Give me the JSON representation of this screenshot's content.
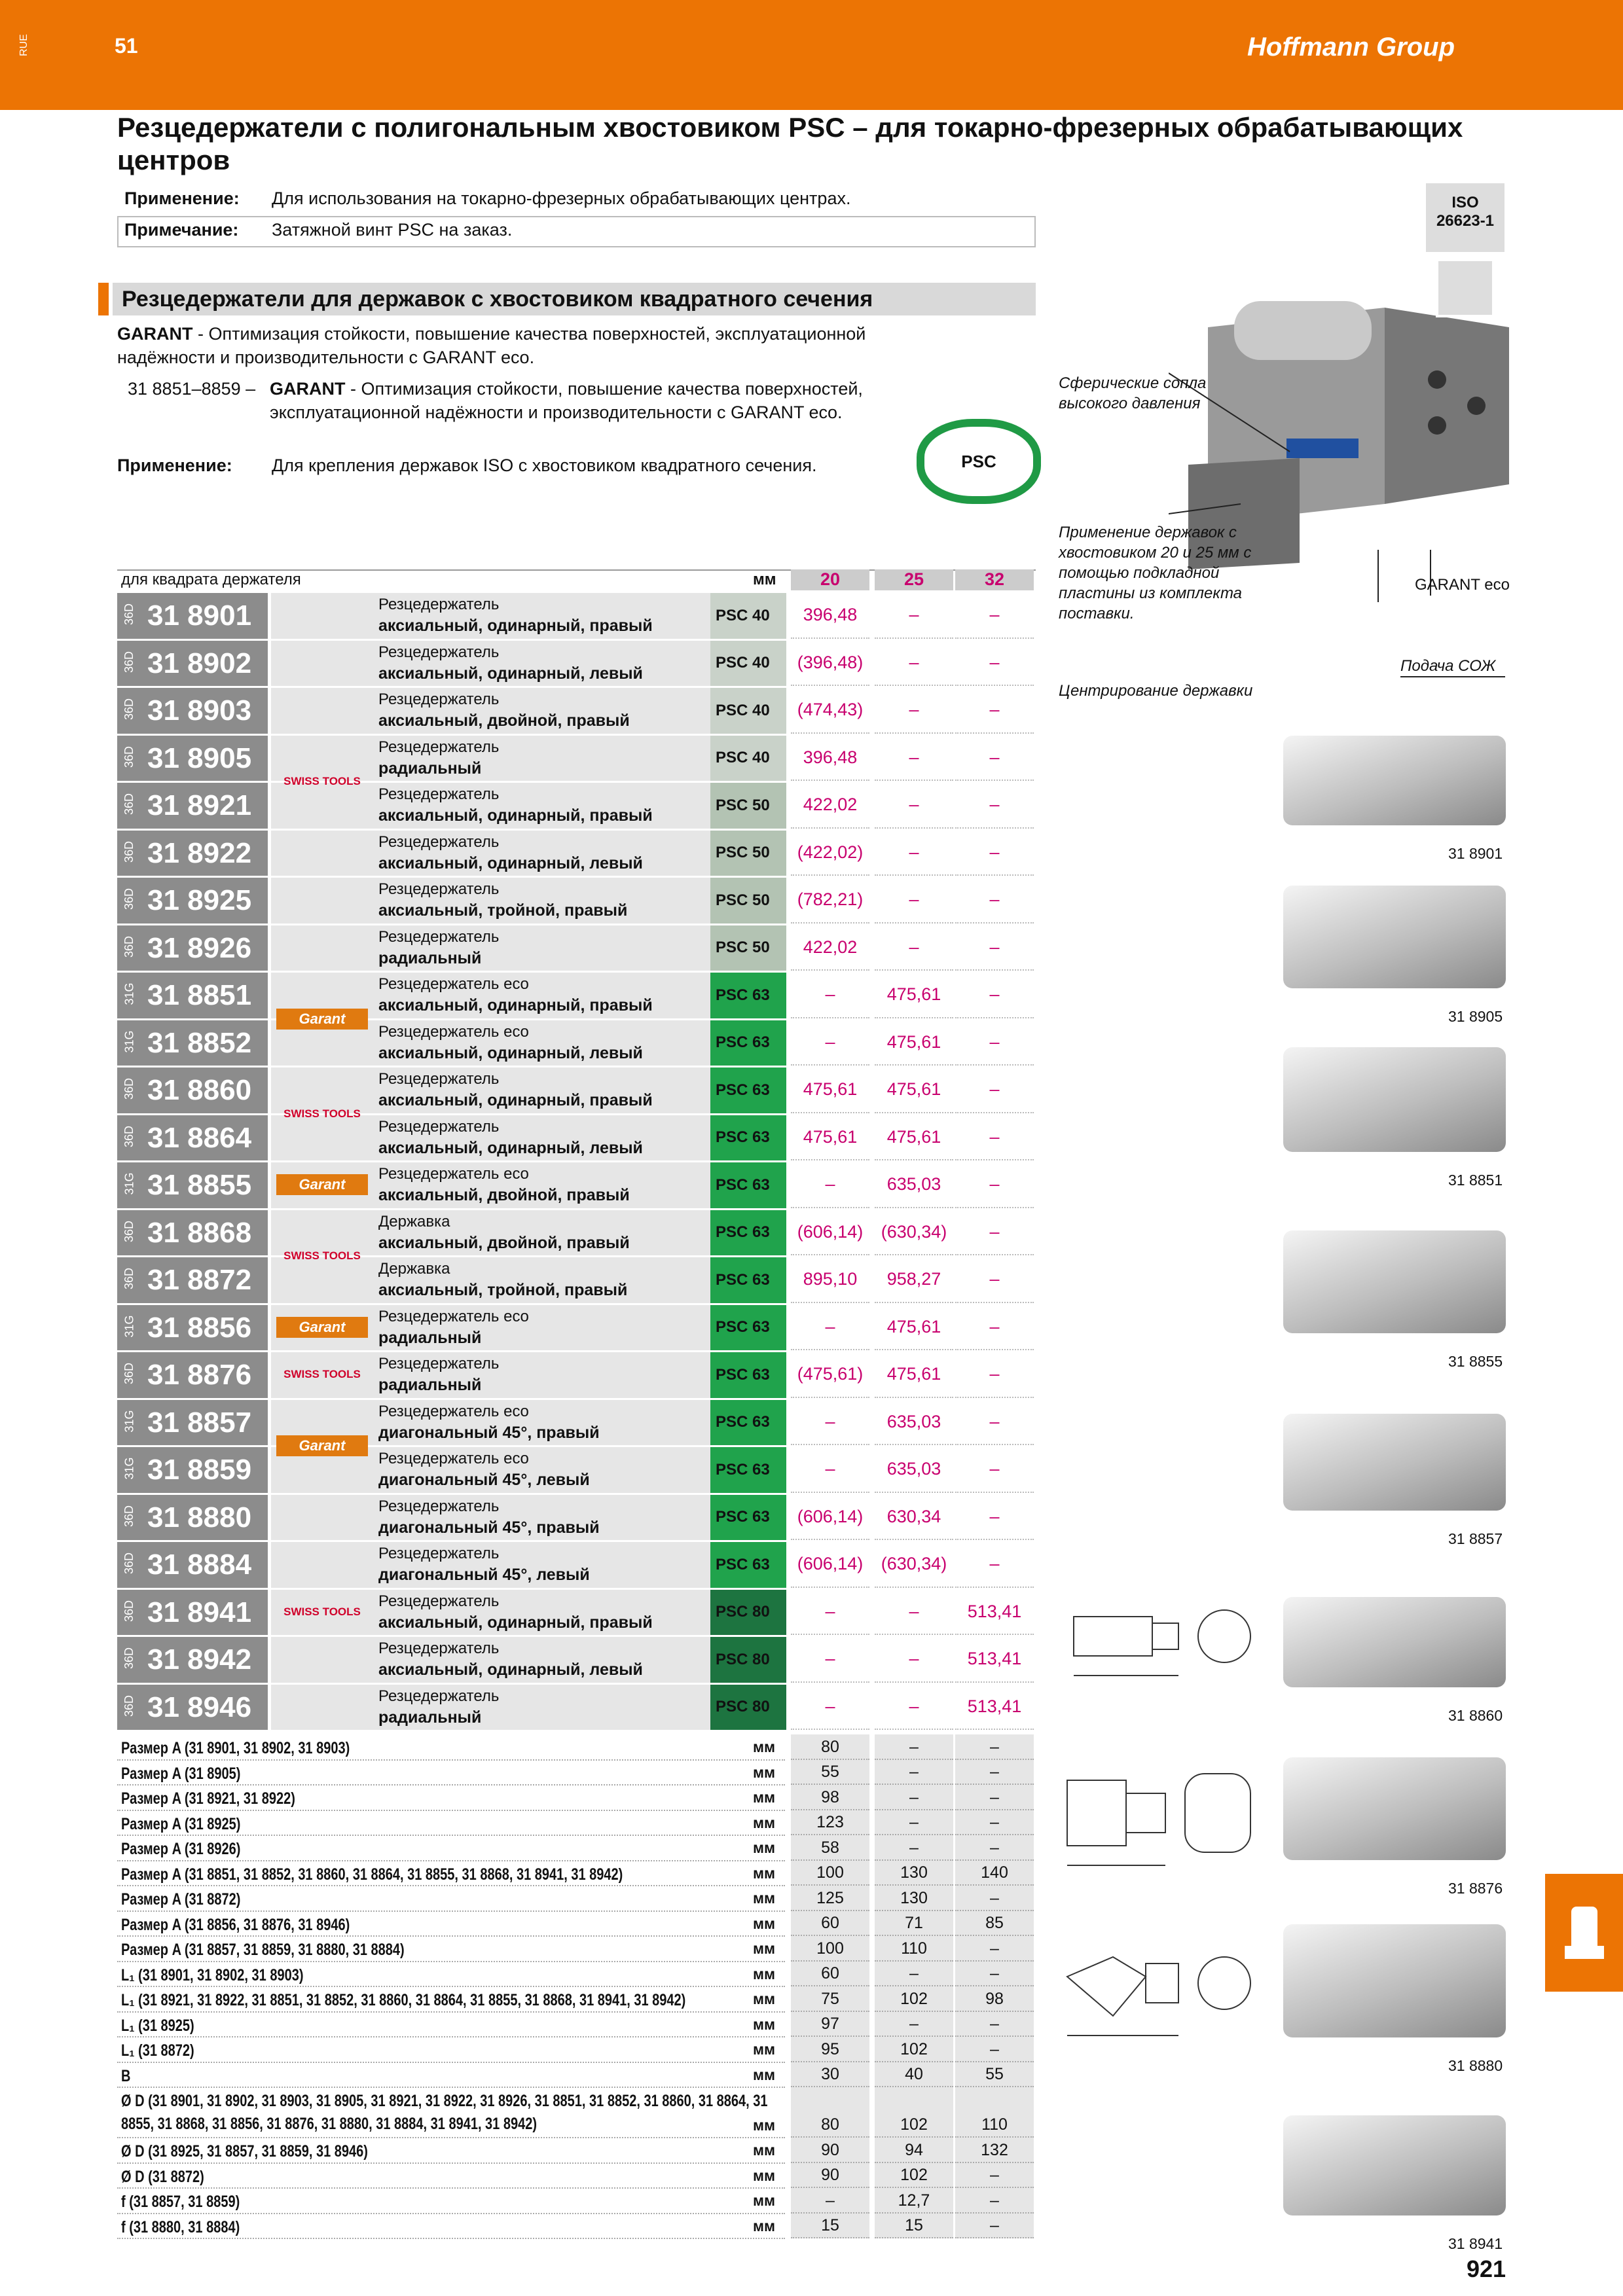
{
  "header": {
    "lang": "RUE",
    "section_no": "51",
    "brand": "Hoffmann Group"
  },
  "title": "Резцедержатели с полигональным хвостовиком PSC – для токарно-фрезерных обрабатывающих центров",
  "info": [
    {
      "label": "Применение:",
      "text": "Для использования на токарно-фрезерных обрабатывающих центрах."
    },
    {
      "label": "Примечание:",
      "text": "Затяжной винт PSC на заказ."
    }
  ],
  "iso": [
    "ISO",
    "26623-1"
  ],
  "section": {
    "title": "Резцедержатели для державок с хвостовиком квадратного сечения",
    "desc": [
      {
        "prefix": "",
        "brand": "GARANT",
        "text": "- Оптимизация стойкости, повышение качества поверхностей, эксплуатационной надёжности и производительности с GARANT eco."
      },
      {
        "prefix": "31 8851–8859 –",
        "brand": "GARANT",
        "text": "- Оптимизация стойкости, повышение качества поверхностей, эксплуатационной надёжности и производительности с GARANT eco."
      }
    ],
    "application": {
      "label": "Применение:",
      "text": "Для крепления державок ISO с хвостовиком квадратного сечения."
    },
    "badge": "PSC"
  },
  "callouts": [
    "Сферические сопла высокого давления",
    "Применение державок с хвостовиком 20 и 25 мм с помощью подкладной пластины из комплекта поставки.",
    "GARANT eco",
    "Подача СОЖ",
    "Центрирование державки"
  ],
  "table": {
    "header": {
      "label": "для квадрата держателя",
      "unit": "мм",
      "sizes": [
        "20",
        "25",
        "32"
      ]
    },
    "rows": [
      {
        "prefix": "36D",
        "code": "31 8901",
        "brand": "SWISS TOOLS",
        "name": "Резцедержатель",
        "variant": "аксиальный, одинарный, правый",
        "psc": "PSC 40",
        "psc_color": "#c9d2c9",
        "prices": [
          "396,48",
          "–",
          "–"
        ]
      },
      {
        "prefix": "36D",
        "code": "31 8902",
        "brand": "SWISS TOOLS",
        "name": "Резцедержатель",
        "variant": "аксиальный, одинарный, левый",
        "psc": "PSC 40",
        "psc_color": "#c9d2c9",
        "prices": [
          "(396,48)",
          "–",
          "–"
        ]
      },
      {
        "prefix": "36D",
        "code": "31 8903",
        "brand": "SWISS TOOLS",
        "name": "Резцедержатель",
        "variant": "аксиальный, двойной, правый",
        "psc": "PSC 40",
        "psc_color": "#c9d2c9",
        "prices": [
          "(474,43)",
          "–",
          "–"
        ]
      },
      {
        "prefix": "36D",
        "code": "31 8905",
        "brand": "SWISS TOOLS",
        "name": "Резцедержатель",
        "variant": "радиальный",
        "psc": "PSC 40",
        "psc_color": "#c9d2c9",
        "prices": [
          "396,48",
          "–",
          "–"
        ]
      },
      {
        "prefix": "36D",
        "code": "31 8921",
        "brand": "SWISS TOOLS",
        "name": "Резцедержатель",
        "variant": "аксиальный, одинарный, правый",
        "psc": "PSC 50",
        "psc_color": "#b3c3b3",
        "prices": [
          "422,02",
          "–",
          "–"
        ]
      },
      {
        "prefix": "36D",
        "code": "31 8922",
        "brand": "SWISS TOOLS",
        "name": "Резцедержатель",
        "variant": "аксиальный, одинарный, левый",
        "psc": "PSC 50",
        "psc_color": "#b3c3b3",
        "prices": [
          "(422,02)",
          "–",
          "–"
        ]
      },
      {
        "prefix": "36D",
        "code": "31 8925",
        "brand": "SWISS TOOLS",
        "name": "Резцедержатель",
        "variant": "аксиальный, тройной, правый",
        "psc": "PSC 50",
        "psc_color": "#b3c3b3",
        "prices": [
          "(782,21)",
          "–",
          "–"
        ]
      },
      {
        "prefix": "36D",
        "code": "31 8926",
        "brand": "SWISS TOOLS",
        "name": "Резцедержатель",
        "variant": "радиальный",
        "psc": "PSC 50",
        "psc_color": "#b3c3b3",
        "prices": [
          "422,02",
          "–",
          "–"
        ]
      },
      {
        "prefix": "31G",
        "code": "31 8851",
        "brand": "Garant",
        "name": "Резцедержатель eco",
        "variant": "аксиальный, одинарный, правый",
        "psc": "PSC 63",
        "psc_color": "#20a34c",
        "prices": [
          "–",
          "475,61",
          "–"
        ]
      },
      {
        "prefix": "31G",
        "code": "31 8852",
        "brand": "Garant",
        "name": "Резцедержатель eco",
        "variant": "аксиальный, одинарный, левый",
        "psc": "PSC 63",
        "psc_color": "#20a34c",
        "prices": [
          "–",
          "475,61",
          "–"
        ]
      },
      {
        "prefix": "36D",
        "code": "31 8860",
        "brand": "SWISS TOOLS",
        "name": "Резцедержатель",
        "variant": "аксиальный, одинарный, правый",
        "psc": "PSC 63",
        "psc_color": "#20a34c",
        "prices": [
          "475,61",
          "475,61",
          "–"
        ]
      },
      {
        "prefix": "36D",
        "code": "31 8864",
        "brand": "SWISS TOOLS",
        "name": "Резцедержатель",
        "variant": "аксиальный, одинарный, левый",
        "psc": "PSC 63",
        "psc_color": "#20a34c",
        "prices": [
          "475,61",
          "475,61",
          "–"
        ]
      },
      {
        "prefix": "31G",
        "code": "31 8855",
        "brand": "Garant",
        "name": "Резцедержатель eco",
        "variant": "аксиальный, двойной, правый",
        "psc": "PSC 63",
        "psc_color": "#20a34c",
        "prices": [
          "–",
          "635,03",
          "–"
        ]
      },
      {
        "prefix": "36D",
        "code": "31 8868",
        "brand": "SWISS TOOLS",
        "name": "Державка",
        "variant": "аксиальный, двойной, правый",
        "psc": "PSC 63",
        "psc_color": "#20a34c",
        "prices": [
          "(606,14)",
          "(630,34)",
          "–"
        ]
      },
      {
        "prefix": "36D",
        "code": "31 8872",
        "brand": "SWISS TOOLS",
        "name": "Державка",
        "variant": "аксиальный, тройной, правый",
        "psc": "PSC 63",
        "psc_color": "#20a34c",
        "prices": [
          "895,10",
          "958,27",
          "–"
        ]
      },
      {
        "prefix": "31G",
        "code": "31 8856",
        "brand": "Garant",
        "name": "Резцедержатель eco",
        "variant": "радиальный",
        "psc": "PSC 63",
        "psc_color": "#20a34c",
        "prices": [
          "–",
          "475,61",
          "–"
        ]
      },
      {
        "prefix": "36D",
        "code": "31 8876",
        "brand": "SWISS TOOLS",
        "name": "Резцедержатель",
        "variant": "радиальный",
        "psc": "PSC 63",
        "psc_color": "#20a34c",
        "prices": [
          "(475,61)",
          "475,61",
          "–"
        ]
      },
      {
        "prefix": "31G",
        "code": "31 8857",
        "brand": "Garant",
        "name": "Резцедержатель eco",
        "variant": "диагональный 45°, правый",
        "psc": "PSC 63",
        "psc_color": "#20a34c",
        "prices": [
          "–",
          "635,03",
          "–"
        ]
      },
      {
        "prefix": "31G",
        "code": "31 8859",
        "brand": "Garant",
        "name": "Резцедержатель eco",
        "variant": "диагональный 45°, левый",
        "psc": "PSC 63",
        "psc_color": "#20a34c",
        "prices": [
          "–",
          "635,03",
          "–"
        ]
      },
      {
        "prefix": "36D",
        "code": "31 8880",
        "brand": "SWISS TOOLS",
        "name": "Резцедержатель",
        "variant": "диагональный 45°, правый",
        "psc": "PSC 63",
        "psc_color": "#20a34c",
        "prices": [
          "(606,14)",
          "630,34",
          "–"
        ]
      },
      {
        "prefix": "36D",
        "code": "31 8884",
        "brand": "SWISS TOOLS",
        "name": "Резцедержатель",
        "variant": "диагональный 45°, левый",
        "psc": "PSC 63",
        "psc_color": "#20a34c",
        "prices": [
          "(606,14)",
          "(630,34)",
          "–"
        ]
      },
      {
        "prefix": "36D",
        "code": "31 8941",
        "brand": "SWISS TOOLS",
        "name": "Резцедержатель",
        "variant": "аксиальный, одинарный, правый",
        "psc": "PSC 80",
        "psc_color": "#1d7440",
        "prices": [
          "–",
          "–",
          "513,41"
        ]
      },
      {
        "prefix": "36D",
        "code": "31 8942",
        "brand": "SWISS TOOLS",
        "name": "Резцедержатель",
        "variant": "аксиальный, одинарный, левый",
        "psc": "PSC 80",
        "psc_color": "#1d7440",
        "prices": [
          "–",
          "–",
          "513,41"
        ]
      },
      {
        "prefix": "36D",
        "code": "31 8946",
        "brand": "SWISS TOOLS",
        "name": "Резцедержатель",
        "variant": "радиальный",
        "psc": "PSC 80",
        "psc_color": "#1d7440",
        "prices": [
          "–",
          "–",
          "513,41"
        ]
      }
    ],
    "dims": [
      {
        "label": "Размер A (31 8901, 31 8902, 31 8903)",
        "unit": "мм",
        "values": [
          "80",
          "–",
          "–"
        ]
      },
      {
        "label": "Размер A (31 8905)",
        "unit": "мм",
        "values": [
          "55",
          "–",
          "–"
        ]
      },
      {
        "label": "Размер A (31 8921, 31 8922)",
        "unit": "мм",
        "values": [
          "98",
          "–",
          "–"
        ]
      },
      {
        "label": "Размер A (31 8925)",
        "unit": "мм",
        "values": [
          "123",
          "–",
          "–"
        ]
      },
      {
        "label": "Размер A (31 8926)",
        "unit": "мм",
        "values": [
          "58",
          "–",
          "–"
        ]
      },
      {
        "label": "Размер A (31 8851, 31 8852, 31 8860, 31 8864, 31 8855, 31 8868, 31 8941, 31 8942)",
        "unit": "мм",
        "values": [
          "100",
          "130",
          "140"
        ]
      },
      {
        "label": "Размер A (31 8872)",
        "unit": "мм",
        "values": [
          "125",
          "130",
          "–"
        ]
      },
      {
        "label": "Размер A (31 8856, 31 8876, 31 8946)",
        "unit": "мм",
        "values": [
          "60",
          "71",
          "85"
        ]
      },
      {
        "label": "Размер A (31 8857, 31 8859, 31 8880, 31 8884)",
        "unit": "мм",
        "values": [
          "100",
          "110",
          "–"
        ]
      },
      {
        "label": "L₁ (31 8901, 31 8902, 31 8903)",
        "unit": "мм",
        "values": [
          "60",
          "–",
          "–"
        ]
      },
      {
        "label": "L₁ (31 8921, 31 8922, 31 8851, 31 8852, 31 8860, 31 8864, 31 8855, 31 8868, 31 8941, 31 8942)",
        "unit": "мм",
        "values": [
          "75",
          "102",
          "98"
        ]
      },
      {
        "label": "L₁ (31 8925)",
        "unit": "мм",
        "values": [
          "97",
          "–",
          "–"
        ]
      },
      {
        "label": "L₁ (31 8872)",
        "unit": "мм",
        "values": [
          "95",
          "102",
          "–"
        ]
      },
      {
        "label": "B",
        "unit": "мм",
        "values": [
          "30",
          "40",
          "55"
        ]
      },
      {
        "label": "Ø D (31 8901, 31 8902, 31 8903, 31 8905, 31 8921, 31 8922, 31 8926, 31 8851, 31 8852, 31 8860, 31 8864, 31 8855, 31 8868, 31 8856, 31 8876, 31 8880, 31 8884, 31 8941, 31 8942)",
        "unit": "мм",
        "values": [
          "80",
          "102",
          "110"
        ]
      },
      {
        "label": "Ø D (31 8925, 31 8857, 31 8859, 31 8946)",
        "unit": "мм",
        "values": [
          "90",
          "94",
          "132"
        ]
      },
      {
        "label": "Ø D (31 8872)",
        "unit": "мм",
        "values": [
          "90",
          "102",
          "–"
        ]
      },
      {
        "label": "f (31 8857, 31 8859)",
        "unit": "мм",
        "values": [
          "–",
          "12,7",
          "–"
        ]
      },
      {
        "label": "f (31 8880, 31 8884)",
        "unit": "мм",
        "values": [
          "15",
          "15",
          "–"
        ]
      }
    ]
  },
  "images": [
    "31 8901",
    "31 8905",
    "31 8851",
    "31 8855",
    "31 8857",
    "31 8860",
    "31 8876",
    "31 8880",
    "31 8941"
  ],
  "footer": {
    "page": "921"
  }
}
